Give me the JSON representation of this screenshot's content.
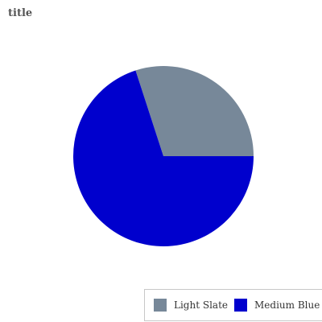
{
  "chart_data": {
    "type": "pie",
    "title": "title",
    "slices": [
      {
        "label": "Light Slate",
        "value": 30,
        "color": "#778899"
      },
      {
        "label": "Medium Blue",
        "value": 70,
        "color": "#0000cd"
      }
    ],
    "legend_position": "bottom-right"
  }
}
